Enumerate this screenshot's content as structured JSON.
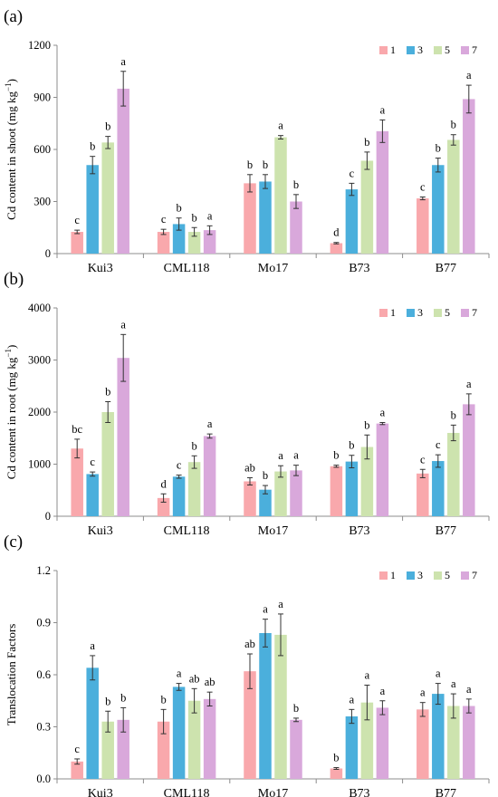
{
  "chart_data": [
    {
      "type": "bar",
      "panel_label": "(a)",
      "ylabel_main": "Cd content in shoot (mg kg",
      "ylabel_sup": "−1",
      "ylabel_tail": ")",
      "categories": [
        "Kui3",
        "CML118",
        "Mo17",
        "B73",
        "B77"
      ],
      "ylim": [
        0,
        1200
      ],
      "yticks": [
        "0",
        "300",
        "600",
        "900",
        "1200"
      ],
      "ytick_values": [
        0,
        300,
        600,
        900,
        1200
      ],
      "grid": false,
      "legend_position": "top-right",
      "series": [
        {
          "name": "1",
          "color": "#F9A8AC",
          "values": [
            125,
            125,
            405,
            60,
            318
          ],
          "errors": [
            10,
            15,
            50,
            4,
            8
          ],
          "labels": [
            "c",
            "c",
            "b",
            "d",
            "c"
          ]
        },
        {
          "name": "3",
          "color": "#4BAFDC",
          "values": [
            510,
            170,
            415,
            370,
            510
          ],
          "errors": [
            50,
            35,
            40,
            35,
            40
          ],
          "labels": [
            "b",
            "b",
            "b",
            "c",
            "b"
          ]
        },
        {
          "name": "5",
          "color": "#CDE3AE",
          "values": [
            640,
            125,
            670,
            535,
            655
          ],
          "errors": [
            35,
            25,
            10,
            50,
            30
          ],
          "labels": [
            "b",
            "b",
            "a",
            "b",
            "b"
          ]
        },
        {
          "name": "7",
          "color": "#D9A8DB",
          "values": [
            950,
            135,
            300,
            705,
            890
          ],
          "errors": [
            100,
            25,
            40,
            65,
            80
          ],
          "labels": [
            "a",
            "a",
            "b",
            "a",
            "a"
          ]
        }
      ]
    },
    {
      "type": "bar",
      "panel_label": "(b)",
      "ylabel_main": "Cd content in root (mg kg",
      "ylabel_sup": "−1",
      "ylabel_tail": ")",
      "categories": [
        "Kui3",
        "CML118",
        "Mo17",
        "B73",
        "B77"
      ],
      "ylim": [
        0,
        4000
      ],
      "yticks": [
        "0",
        "1000",
        "2000",
        "3000",
        "4000"
      ],
      "ytick_values": [
        0,
        1000,
        2000,
        3000,
        4000
      ],
      "grid": false,
      "legend_position": "top-right",
      "series": [
        {
          "name": "1",
          "color": "#F9A8AC",
          "values": [
            1300,
            350,
            670,
            960,
            820
          ],
          "errors": [
            180,
            80,
            70,
            20,
            80
          ],
          "labels": [
            "bc",
            "d",
            "ab",
            "b",
            "c"
          ]
        },
        {
          "name": "3",
          "color": "#4BAFDC",
          "values": [
            810,
            760,
            510,
            1050,
            1060
          ],
          "errors": [
            40,
            30,
            80,
            120,
            120
          ],
          "labels": [
            "c",
            "c",
            "b",
            "b",
            "c"
          ]
        },
        {
          "name": "5",
          "color": "#CDE3AE",
          "values": [
            2000,
            1040,
            860,
            1330,
            1600
          ],
          "errors": [
            200,
            120,
            110,
            230,
            150
          ],
          "labels": [
            "b",
            "b",
            "a",
            "b",
            "b"
          ]
        },
        {
          "name": "7",
          "color": "#D9A8DB",
          "values": [
            3040,
            1540,
            880,
            1780,
            2150
          ],
          "errors": [
            450,
            40,
            100,
            20,
            200
          ],
          "labels": [
            "a",
            "a",
            "a",
            "a",
            "a"
          ]
        }
      ]
    },
    {
      "type": "bar",
      "panel_label": "(c)",
      "ylabel_main": "Translocation Factors",
      "ylabel_sup": "",
      "ylabel_tail": "",
      "categories": [
        "Kui3",
        "CML118",
        "Mo17",
        "B73",
        "B77"
      ],
      "ylim": [
        0,
        1.2
      ],
      "yticks": [
        "0.0",
        "0.3",
        "0.6",
        "0.9",
        "1.2"
      ],
      "ytick_values": [
        0,
        0.3,
        0.6,
        0.9,
        1.2
      ],
      "grid": false,
      "legend_position": "top-right",
      "series": [
        {
          "name": "1",
          "color": "#F9A8AC",
          "values": [
            0.1,
            0.33,
            0.62,
            0.06,
            0.4
          ],
          "errors": [
            0.015,
            0.07,
            0.1,
            0.005,
            0.04
          ],
          "labels": [
            "c",
            "b",
            "ab",
            "b",
            "a"
          ]
        },
        {
          "name": "3",
          "color": "#4BAFDC",
          "values": [
            0.64,
            0.53,
            0.84,
            0.36,
            0.49
          ],
          "errors": [
            0.07,
            0.02,
            0.08,
            0.04,
            0.06
          ],
          "labels": [
            "a",
            "a",
            "a",
            "a",
            "a"
          ]
        },
        {
          "name": "5",
          "color": "#CDE3AE",
          "values": [
            0.33,
            0.45,
            0.83,
            0.44,
            0.42
          ],
          "errors": [
            0.06,
            0.07,
            0.12,
            0.1,
            0.07
          ],
          "labels": [
            "b",
            "ab",
            "a",
            "a",
            "a"
          ]
        },
        {
          "name": "7",
          "color": "#D9A8DB",
          "values": [
            0.34,
            0.46,
            0.34,
            0.41,
            0.42
          ],
          "errors": [
            0.07,
            0.04,
            0.01,
            0.04,
            0.04
          ],
          "labels": [
            "b",
            "ab",
            "b",
            "a",
            "a"
          ]
        }
      ]
    }
  ]
}
